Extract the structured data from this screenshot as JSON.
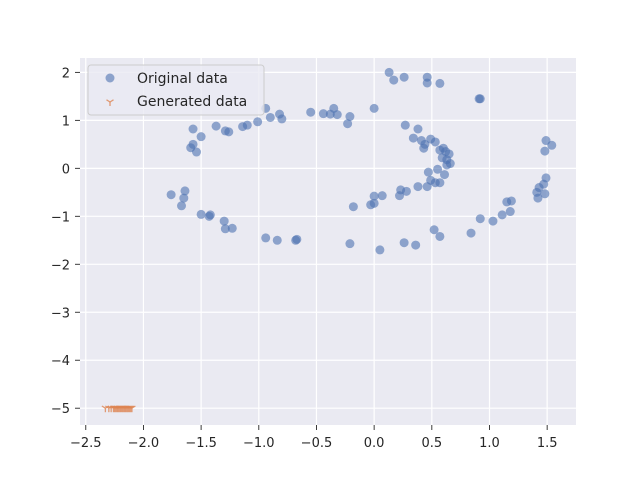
{
  "chart_data": {
    "type": "scatter",
    "title": "",
    "xlabel": "",
    "ylabel": "",
    "xlim": [
      -2.55,
      1.75
    ],
    "ylim": [
      -5.35,
      2.3
    ],
    "xticks": [
      -2.5,
      -2.0,
      -1.5,
      -1.0,
      -0.5,
      0.0,
      0.5,
      1.0,
      1.5
    ],
    "xtick_labels": [
      "−2.5",
      "−2.0",
      "−1.5",
      "−1.0",
      "−0.5",
      "0.0",
      "0.5",
      "1.0",
      "1.5"
    ],
    "yticks": [
      2,
      1,
      0,
      -1,
      -2,
      -3,
      -4,
      -5
    ],
    "ytick_labels": [
      "2",
      "1",
      "0",
      "−1",
      "−2",
      "−3",
      "−4",
      "−5"
    ],
    "grid": true,
    "legend_position": "top-left",
    "series": [
      {
        "name": "Original data",
        "marker": "circle",
        "color": "#4c72b0",
        "points": [
          [
            0.13,
            2.0
          ],
          [
            0.26,
            1.9
          ],
          [
            0.46,
            1.9
          ],
          [
            0.46,
            1.78
          ],
          [
            0.57,
            1.77
          ],
          [
            0.17,
            1.84
          ],
          [
            0.91,
            1.45
          ],
          [
            -0.94,
            1.25
          ],
          [
            -0.35,
            1.25
          ],
          [
            0.0,
            1.25
          ],
          [
            -0.55,
            1.17
          ],
          [
            -0.44,
            1.14
          ],
          [
            -0.38,
            1.13
          ],
          [
            -0.32,
            1.12
          ],
          [
            -0.21,
            1.08
          ],
          [
            -0.82,
            1.13
          ],
          [
            -0.9,
            1.06
          ],
          [
            -0.8,
            1.03
          ],
          [
            -0.23,
            0.93
          ],
          [
            -1.01,
            0.97
          ],
          [
            -1.1,
            0.9
          ],
          [
            -1.14,
            0.87
          ],
          [
            -1.37,
            0.88
          ],
          [
            -1.29,
            0.78
          ],
          [
            -1.26,
            0.76
          ],
          [
            -1.57,
            0.82
          ],
          [
            -1.5,
            0.66
          ],
          [
            -1.57,
            0.5
          ],
          [
            -1.59,
            0.43
          ],
          [
            -1.54,
            0.34
          ],
          [
            0.27,
            0.9
          ],
          [
            0.38,
            0.82
          ],
          [
            0.34,
            0.63
          ],
          [
            0.41,
            0.58
          ],
          [
            0.44,
            0.5
          ],
          [
            0.49,
            0.61
          ],
          [
            0.43,
            0.42
          ],
          [
            0.53,
            0.55
          ],
          [
            0.57,
            0.38
          ],
          [
            0.6,
            0.42
          ],
          [
            0.62,
            0.35
          ],
          [
            0.65,
            0.3
          ],
          [
            0.59,
            0.22
          ],
          [
            0.63,
            0.18
          ],
          [
            0.66,
            0.1
          ],
          [
            0.63,
            0.07
          ],
          [
            0.55,
            -0.02
          ],
          [
            0.47,
            -0.08
          ],
          [
            0.61,
            -0.13
          ],
          [
            0.49,
            -0.25
          ],
          [
            0.53,
            -0.3
          ],
          [
            0.57,
            -0.3
          ],
          [
            0.46,
            -0.38
          ],
          [
            0.38,
            -0.38
          ],
          [
            0.28,
            -0.48
          ],
          [
            0.23,
            -0.45
          ],
          [
            0.22,
            -0.57
          ],
          [
            0.07,
            -0.57
          ],
          [
            0.0,
            -0.58
          ],
          [
            0.0,
            -0.73
          ],
          [
            -0.03,
            -0.76
          ],
          [
            -0.18,
            -0.8
          ],
          [
            0.92,
            1.45
          ],
          [
            1.49,
            0.58
          ],
          [
            1.54,
            0.48
          ],
          [
            1.48,
            0.36
          ],
          [
            1.49,
            -0.2
          ],
          [
            1.47,
            -0.33
          ],
          [
            1.43,
            -0.4
          ],
          [
            1.41,
            -0.5
          ],
          [
            1.48,
            -0.53
          ],
          [
            1.42,
            -0.62
          ],
          [
            1.19,
            -0.68
          ],
          [
            1.15,
            -0.7
          ],
          [
            1.18,
            -0.9
          ],
          [
            1.11,
            -0.97
          ],
          [
            1.03,
            -1.1
          ],
          [
            0.92,
            -1.05
          ],
          [
            0.84,
            -1.35
          ],
          [
            0.52,
            -1.28
          ],
          [
            0.57,
            -1.42
          ],
          [
            0.26,
            -1.55
          ],
          [
            0.36,
            -1.6
          ],
          [
            0.05,
            -1.7
          ],
          [
            -0.21,
            -1.57
          ],
          [
            -0.67,
            -1.48
          ],
          [
            -0.68,
            -1.5
          ],
          [
            -0.84,
            -1.5
          ],
          [
            -0.94,
            -1.45
          ],
          [
            -1.23,
            -1.25
          ],
          [
            -1.29,
            -1.26
          ],
          [
            -1.3,
            -1.1
          ],
          [
            -1.42,
            -0.97
          ],
          [
            -1.43,
            -1.0
          ],
          [
            -1.5,
            -0.96
          ],
          [
            -1.64,
            -0.47
          ],
          [
            -1.65,
            -0.62
          ],
          [
            -1.67,
            -0.78
          ],
          [
            -1.76,
            -0.55
          ]
        ]
      },
      {
        "name": "Generated data",
        "marker": "tri_down",
        "color": "#dd8452",
        "points": [
          [
            -2.33,
            -5.0
          ],
          [
            -2.3,
            -5.0
          ],
          [
            -2.28,
            -5.0
          ],
          [
            -2.26,
            -5.0
          ],
          [
            -2.25,
            -5.0
          ],
          [
            -2.24,
            -5.0
          ],
          [
            -2.23,
            -5.0
          ],
          [
            -2.22,
            -5.0
          ],
          [
            -2.21,
            -5.0
          ],
          [
            -2.2,
            -5.0
          ],
          [
            -2.19,
            -5.0
          ],
          [
            -2.18,
            -5.0
          ],
          [
            -2.17,
            -5.0
          ],
          [
            -2.16,
            -5.0
          ],
          [
            -2.15,
            -5.0
          ],
          [
            -2.14,
            -5.0
          ],
          [
            -2.13,
            -5.0
          ],
          [
            -2.12,
            -5.0
          ],
          [
            -2.11,
            -5.0
          ],
          [
            -2.1,
            -5.0
          ]
        ]
      }
    ]
  }
}
